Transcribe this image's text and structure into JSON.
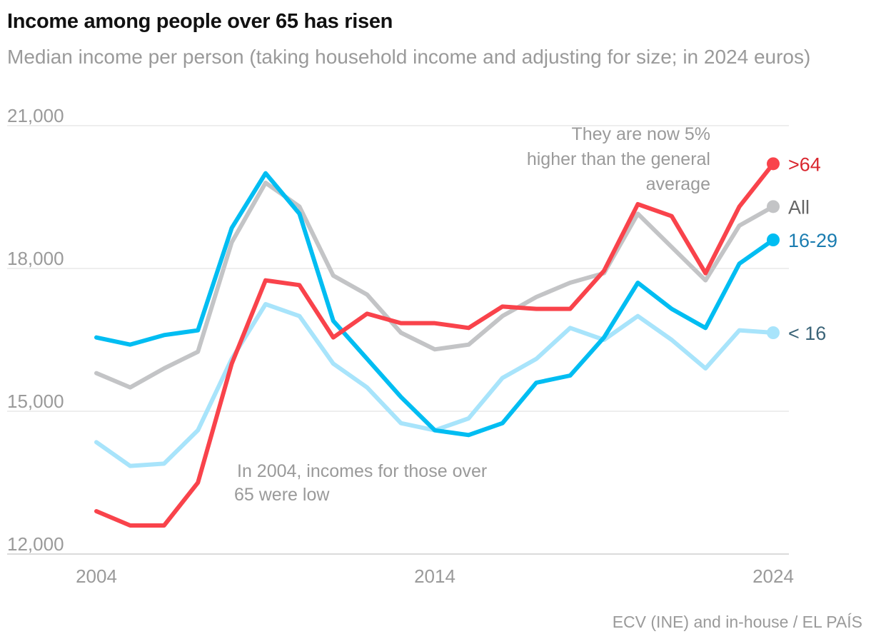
{
  "header": {
    "title": "Income among people over 65 has risen",
    "subtitle": "Median income per person (taking household income and adjusting for size; in 2024 euros)"
  },
  "footer": {
    "source": "ECV (INE) and in-house / EL PAÍS"
  },
  "chart_data": {
    "type": "line",
    "title": "Income among people over 65 has risen",
    "subtitle": "Median income per person (taking household income and adjusting for size; in 2024 euros)",
    "xlabel": "",
    "ylabel": "",
    "x": [
      2004,
      2005,
      2006,
      2007,
      2008,
      2009,
      2010,
      2011,
      2012,
      2013,
      2014,
      2015,
      2016,
      2017,
      2018,
      2019,
      2020,
      2021,
      2022,
      2023,
      2024
    ],
    "xlim": [
      2004,
      2024
    ],
    "ylim": [
      12000,
      21000
    ],
    "y_ticks": [
      {
        "value": 12000,
        "label": "12,000"
      },
      {
        "value": 15000,
        "label": "15,000"
      },
      {
        "value": 18000,
        "label": "18,000"
      },
      {
        "value": 21000,
        "label": "21,000"
      }
    ],
    "x_ticks": [
      {
        "value": 2004,
        "label": "2004"
      },
      {
        "value": 2014,
        "label": "2014"
      },
      {
        "value": 2024,
        "label": "2024"
      }
    ],
    "grid": true,
    "series": [
      {
        "name": "< 16",
        "color": "#a8e4fb",
        "label_color": "#3b6478",
        "values": [
          14350,
          13850,
          13900,
          14600,
          16100,
          17250,
          17000,
          16000,
          15500,
          14750,
          14600,
          14850,
          15700,
          16100,
          16750,
          16500,
          17000,
          16500,
          15900,
          16700,
          16650
        ]
      },
      {
        "name": "All",
        "color": "#c3c4c6",
        "label_color": "#666666",
        "values": [
          15800,
          15500,
          15900,
          16250,
          18550,
          19800,
          19300,
          17850,
          17450,
          16650,
          16300,
          16400,
          17000,
          17400,
          17700,
          17900,
          19150,
          18450,
          17750,
          18900,
          19300
        ]
      },
      {
        "name": "16-29",
        "color": "#00bdf2",
        "label_color": "#1a7cb0",
        "values": [
          16550,
          16400,
          16600,
          16700,
          18850,
          20000,
          19150,
          16900,
          16100,
          15300,
          14600,
          14500,
          14750,
          15600,
          15750,
          16550,
          17700,
          17150,
          16750,
          18100,
          18600
        ]
      },
      {
        "name": ">64",
        "color": "#f9434b",
        "label_color": "#d9262e",
        "values": [
          12900,
          12600,
          12600,
          13500,
          16000,
          17750,
          17650,
          16550,
          17050,
          16850,
          16850,
          16750,
          17200,
          17150,
          17150,
          17950,
          19350,
          19100,
          17900,
          19300,
          20200
        ]
      }
    ],
    "annotations": [
      {
        "text_lines": [
          "They are now 5%",
          "higher than the general",
          "average"
        ]
      },
      {
        "text_lines": [
          "In 2004, incomes for those over",
          "65 were low"
        ]
      }
    ]
  }
}
